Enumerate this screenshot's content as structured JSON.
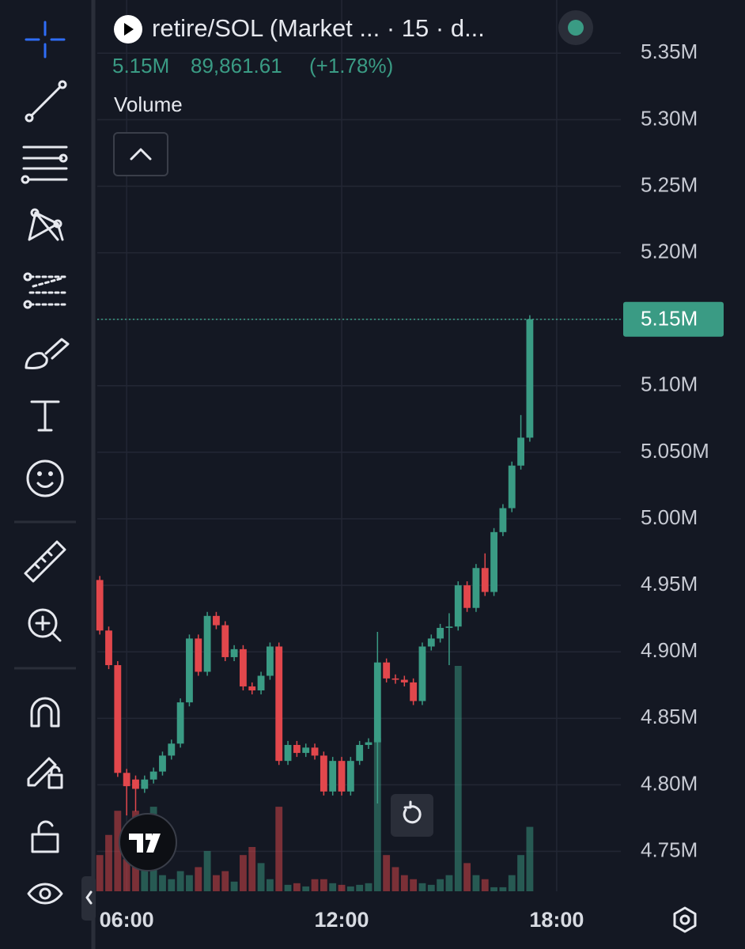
{
  "chart_data": {
    "type": "candlestick",
    "title": "retire/SOL (Market ... · 15 · d...",
    "header_price": "5.15M",
    "header_change": "89,861.61",
    "header_change_pct": "(+1.78%)",
    "volume_label": "Volume",
    "last_label": "5.15M",
    "up_color": "#3a9b84",
    "down_color": "#e2474c",
    "grid": true,
    "xlim": [
      5.18,
      19.79
    ],
    "xticks": [
      {
        "value": 6,
        "label": "06:00"
      },
      {
        "value": 12,
        "label": "12:00"
      },
      {
        "value": 18,
        "label": "18:00"
      }
    ],
    "ylim": [
      4.72,
      5.39
    ],
    "yticks": [
      {
        "value": 4.75,
        "label": "4.75M"
      },
      {
        "value": 4.8,
        "label": "4.80M"
      },
      {
        "value": 4.85,
        "label": "4.85M"
      },
      {
        "value": 4.9,
        "label": "4.90M"
      },
      {
        "value": 4.95,
        "label": "4.95M"
      },
      {
        "value": 5.0,
        "label": "5.00M"
      },
      {
        "value": 5.05,
        "label": "5.050M"
      },
      {
        "value": 5.1,
        "label": "5.10M"
      },
      {
        "value": 5.15,
        "label": "5.15M"
      },
      {
        "value": 5.2,
        "label": "5.20M"
      },
      {
        "value": 5.25,
        "label": "5.25M"
      },
      {
        "value": 5.3,
        "label": "5.30M"
      },
      {
        "value": 5.35,
        "label": "5.35M"
      }
    ],
    "x": [
      5.25,
      5.5,
      5.75,
      6,
      6.25,
      6.5,
      6.75,
      7,
      7.25,
      7.5,
      7.75,
      8,
      8.25,
      8.5,
      8.75,
      9,
      9.25,
      9.5,
      9.75,
      10,
      10.25,
      10.5,
      10.75,
      11,
      11.25,
      11.5,
      11.75,
      12,
      12.25,
      12.5,
      12.75,
      13,
      13.25,
      13.5,
      13.75,
      14,
      14.25,
      14.5,
      14.75,
      15,
      15.25,
      15.5,
      15.75,
      16,
      16.25,
      16.5,
      16.75,
      17,
      17.25
    ],
    "open": [
      4.954,
      4.916,
      4.89,
      4.809,
      4.804,
      4.797,
      4.804,
      4.81,
      4.822,
      4.831,
      4.862,
      4.91,
      4.885,
      4.927,
      4.92,
      4.896,
      4.902,
      4.874,
      4.871,
      4.882,
      4.904,
      4.818,
      4.83,
      4.824,
      4.828,
      4.822,
      4.795,
      4.818,
      4.795,
      4.818,
      4.83,
      4.832,
      4.892,
      4.88,
      4.879,
      4.877,
      4.863,
      4.904,
      4.91,
      4.918,
      4.919,
      4.95,
      4.933,
      4.963,
      4.945,
      4.99,
      5.008,
      5.04,
      5.061
    ],
    "high": [
      4.957,
      4.919,
      4.893,
      4.812,
      4.807,
      4.807,
      4.813,
      4.825,
      4.834,
      4.865,
      4.913,
      4.913,
      4.93,
      4.93,
      4.923,
      4.905,
      4.905,
      4.877,
      4.885,
      4.907,
      4.907,
      4.833,
      4.833,
      4.831,
      4.831,
      4.825,
      4.821,
      4.821,
      4.821,
      4.833,
      4.835,
      4.915,
      4.895,
      4.883,
      4.882,
      4.88,
      4.907,
      4.913,
      4.921,
      4.929,
      4.953,
      4.953,
      4.966,
      4.974,
      4.993,
      5.011,
      5.043,
      5.078,
      5.153
    ],
    "low": [
      4.913,
      4.887,
      4.806,
      4.777,
      4.78,
      4.794,
      4.801,
      4.807,
      4.819,
      4.828,
      4.859,
      4.882,
      4.882,
      4.917,
      4.893,
      4.893,
      4.871,
      4.868,
      4.868,
      4.879,
      4.815,
      4.815,
      4.821,
      4.821,
      4.819,
      4.792,
      4.792,
      4.792,
      4.792,
      4.815,
      4.827,
      4.786,
      4.877,
      4.876,
      4.874,
      4.86,
      4.86,
      4.901,
      4.907,
      4.89,
      4.916,
      4.93,
      4.93,
      4.942,
      4.942,
      4.987,
      5.005,
      5.037,
      5.058
    ],
    "close": [
      4.916,
      4.89,
      4.809,
      4.799,
      4.797,
      4.804,
      4.81,
      4.822,
      4.831,
      4.862,
      4.91,
      4.885,
      4.927,
      4.92,
      4.896,
      4.902,
      4.874,
      4.871,
      4.882,
      4.904,
      4.818,
      4.83,
      4.824,
      4.828,
      4.822,
      4.795,
      4.818,
      4.795,
      4.818,
      4.83,
      4.832,
      4.892,
      4.88,
      4.879,
      4.877,
      4.863,
      4.904,
      4.91,
      4.918,
      4.919,
      4.95,
      4.933,
      4.963,
      4.945,
      4.99,
      5.008,
      5.04,
      5.061,
      5.15
    ],
    "volume": [
      45,
      70,
      100,
      40,
      100,
      30,
      105,
      20,
      15,
      25,
      20,
      30,
      50,
      20,
      25,
      12,
      45,
      55,
      35,
      15,
      105,
      8,
      10,
      6,
      15,
      15,
      10,
      8,
      6,
      8,
      10,
      190,
      45,
      30,
      20,
      15,
      10,
      8,
      15,
      20,
      280,
      35,
      20,
      15,
      5,
      5,
      20,
      45,
      80
    ]
  }
}
